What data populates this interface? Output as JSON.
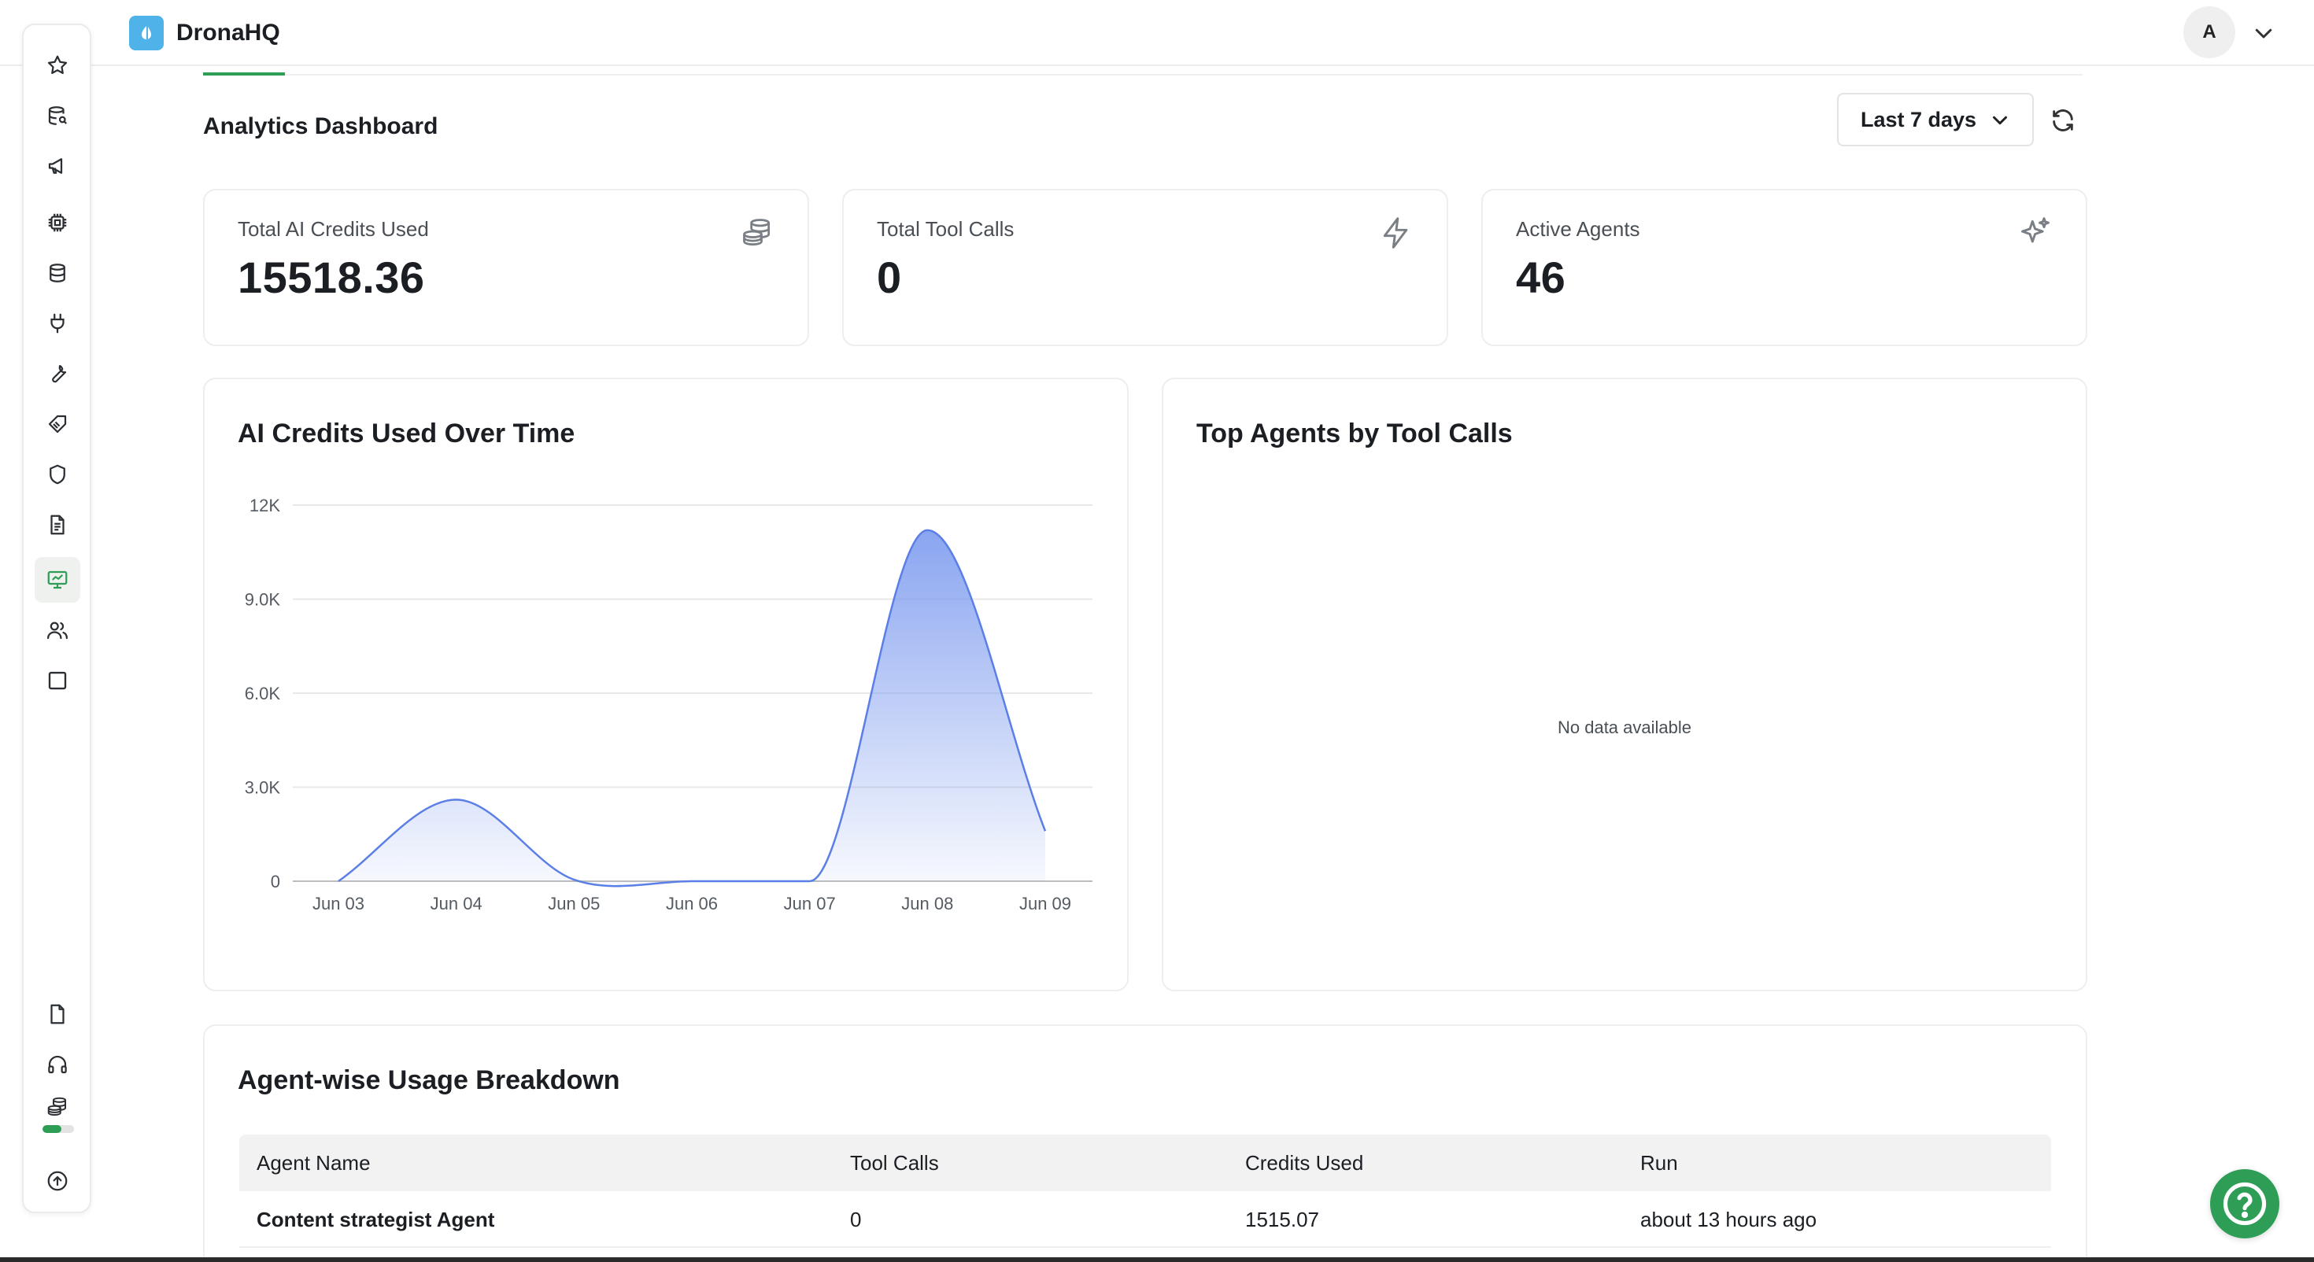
{
  "app": {
    "name": "DronaHQ",
    "user_initial": "A"
  },
  "sidebar": {
    "items": [
      {
        "name": "favorites",
        "icon": "star-icon"
      },
      {
        "name": "data-explorer",
        "icon": "database-search-icon"
      },
      {
        "name": "announcements",
        "icon": "megaphone-icon"
      },
      {
        "name": "ai-models",
        "icon": "chip-icon"
      },
      {
        "name": "databases",
        "icon": "database-icon"
      },
      {
        "name": "connectors",
        "icon": "plug-icon"
      },
      {
        "name": "tools",
        "icon": "wrench-icon"
      },
      {
        "name": "labels",
        "icon": "tag-icon"
      },
      {
        "name": "security",
        "icon": "shield-icon"
      },
      {
        "name": "documents",
        "icon": "document-icon"
      },
      {
        "name": "analytics",
        "icon": "monitor-chart-icon",
        "active": true
      },
      {
        "name": "users",
        "icon": "users-icon"
      },
      {
        "name": "canvas",
        "icon": "square-icon"
      }
    ],
    "bottom_items": [
      {
        "name": "docs",
        "icon": "file-icon"
      },
      {
        "name": "support",
        "icon": "headphones-icon"
      },
      {
        "name": "credits",
        "icon": "coins-icon",
        "usage_fraction": 0.6
      },
      {
        "name": "upgrade",
        "icon": "arrow-up-circle-icon"
      }
    ],
    "accent_color": "#2e9e57"
  },
  "page": {
    "title": "Analytics Dashboard",
    "range_select": {
      "value": "Last 7 days"
    }
  },
  "stats": [
    {
      "label": "Total AI Credits Used",
      "value": "15518.36",
      "icon": "coins-icon"
    },
    {
      "label": "Total Tool Calls",
      "value": "0",
      "icon": "lightning-icon"
    },
    {
      "label": "Active Agents",
      "value": "46",
      "icon": "sparkles-icon"
    }
  ],
  "credits_chart": {
    "title": "AI Credits Used Over Time"
  },
  "top_agents": {
    "title": "Top Agents by Tool Calls",
    "empty_text": "No data available"
  },
  "chart_data": {
    "type": "area",
    "title": "AI Credits Used Over Time",
    "categories": [
      "Jun 03",
      "Jun 04",
      "Jun 05",
      "Jun 06",
      "Jun 07",
      "Jun 08",
      "Jun 09"
    ],
    "values": [
      0,
      2600,
      50,
      0,
      0,
      11200,
      1600
    ],
    "y_ticks": [
      0,
      3000,
      6000,
      9000,
      12000
    ],
    "y_tick_labels": [
      "0",
      "3.0K",
      "6.0K",
      "9.0K",
      "12K"
    ],
    "ylim": [
      0,
      12000
    ],
    "grid": true,
    "line_color": "#5b7fe6",
    "fill_color": "#7d9bef"
  },
  "usage_table": {
    "title": "Agent-wise Usage Breakdown",
    "columns": [
      "Agent Name",
      "Tool Calls",
      "Credits Used",
      "Run"
    ],
    "rows": [
      [
        "Content strategist Agent",
        "0",
        "1515.07",
        "about 13 hours ago"
      ]
    ]
  }
}
